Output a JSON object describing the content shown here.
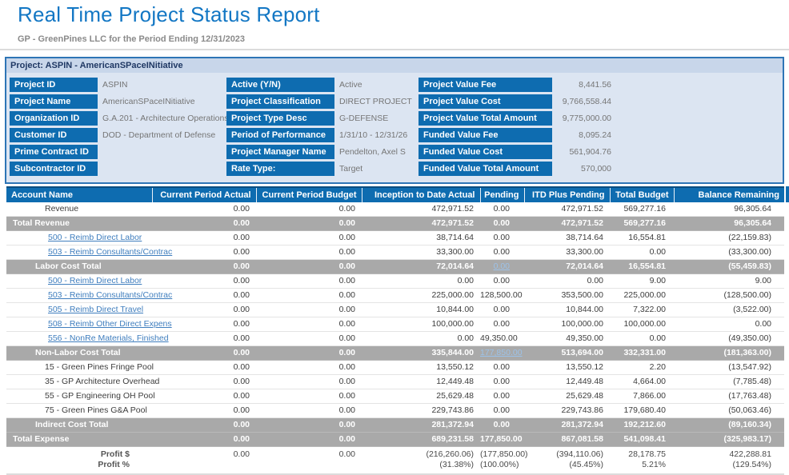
{
  "title": "Real Time Project Status Report",
  "subtitle": "GP - GreenPines LLC for the Period Ending 12/31/2023",
  "project_banner": "Project: ASPIN - AmericanSPaceINitiative",
  "info_panel": {
    "col1": [
      {
        "label": "Project ID",
        "value": "ASPIN"
      },
      {
        "label": "Project Name",
        "value": "AmericanSPaceINitiative"
      },
      {
        "label": "Organization ID",
        "value": "G.A.201 - Architecture Operations"
      },
      {
        "label": "Customer ID",
        "value": "DOD - Department of Defense"
      },
      {
        "label": "Prime Contract ID",
        "value": ""
      },
      {
        "label": "Subcontractor ID",
        "value": ""
      }
    ],
    "col2": [
      {
        "label": "Active (Y/N)",
        "value": "Active"
      },
      {
        "label": "Project Classification",
        "value": "DIRECT PROJECT"
      },
      {
        "label": "Project Type Desc",
        "value": "G-DEFENSE"
      },
      {
        "label": "Period of Performance",
        "value": "1/31/10 - 12/31/26"
      },
      {
        "label": "Project Manager Name",
        "value": "Pendelton, Axel S"
      },
      {
        "label": "Rate Type:",
        "value": "Target"
      }
    ],
    "col3": [
      {
        "label": "Project Value Fee",
        "value": "8,441.56"
      },
      {
        "label": "Project Value Cost",
        "value": "9,766,558.44"
      },
      {
        "label": "Project Value Total Amount",
        "value": "9,775,000.00"
      },
      {
        "label": "Funded Value Fee",
        "value": "8,095.24"
      },
      {
        "label": "Funded Value Cost",
        "value": "561,904.76"
      },
      {
        "label": "Funded Value Total Amount",
        "value": "570,000"
      }
    ]
  },
  "table": {
    "columns": [
      "Account Name",
      "Current Period Actual",
      "Current Period Budget",
      "Inception to Date Actual",
      "Pending",
      "ITD Plus Pending",
      "Total Budget",
      "Balance Remaining"
    ],
    "rows": [
      {
        "label": "Revenue",
        "type": "plain",
        "indent": 2,
        "values": [
          "0.00",
          "0.00",
          "472,971.52",
          "0.00",
          "472,971.52",
          "569,277.16",
          "96,305.64"
        ]
      },
      {
        "label": "Total Revenue",
        "type": "grand",
        "indent": 0,
        "values": [
          "0.00",
          "0.00",
          "472,971.52",
          "0.00",
          "472,971.52",
          "569,277.16",
          "96,305.64"
        ]
      },
      {
        "label": "500 - Reimb Direct Labor",
        "type": "link",
        "indent": 3,
        "values": [
          "0.00",
          "0.00",
          "38,714.64",
          "0.00",
          "38,714.64",
          "16,554.81",
          "(22,159.83)"
        ]
      },
      {
        "label": "503 - Reimb Consultants/Contrac",
        "type": "link",
        "indent": 3,
        "values": [
          "0.00",
          "0.00",
          "33,300.00",
          "0.00",
          "33,300.00",
          "0.00",
          "(33,300.00)"
        ]
      },
      {
        "label": "Labor Cost Total",
        "type": "total",
        "indent": 1,
        "pending_link": true,
        "values": [
          "0.00",
          "0.00",
          "72,014.64",
          "0.00",
          "72,014.64",
          "16,554.81",
          "(55,459.83)"
        ]
      },
      {
        "label": "500 - Reimb Direct Labor",
        "type": "link",
        "indent": 3,
        "values": [
          "0.00",
          "0.00",
          "0.00",
          "0.00",
          "0.00",
          "9.00",
          "9.00"
        ]
      },
      {
        "label": "503 - Reimb Consultants/Contrac",
        "type": "link",
        "indent": 3,
        "values": [
          "0.00",
          "0.00",
          "225,000.00",
          "128,500.00",
          "353,500.00",
          "225,000.00",
          "(128,500.00)"
        ]
      },
      {
        "label": "505 - Reimb Direct Travel",
        "type": "link",
        "indent": 3,
        "values": [
          "0.00",
          "0.00",
          "10,844.00",
          "0.00",
          "10,844.00",
          "7,322.00",
          "(3,522.00)"
        ]
      },
      {
        "label": "508 - Reimb Other Direct Expens",
        "type": "link",
        "indent": 3,
        "values": [
          "0.00",
          "0.00",
          "100,000.00",
          "0.00",
          "100,000.00",
          "100,000.00",
          "0.00"
        ]
      },
      {
        "label": "556 - NonRe Materials, Finished",
        "type": "link",
        "indent": 3,
        "values": [
          "0.00",
          "0.00",
          "0.00",
          "49,350.00",
          "49,350.00",
          "0.00",
          "(49,350.00)"
        ]
      },
      {
        "label": "Non-Labor Cost Total",
        "type": "total",
        "indent": 1,
        "pending_link": true,
        "values": [
          "0.00",
          "0.00",
          "335,844.00",
          "177,850.00",
          "513,694.00",
          "332,331.00",
          "(181,363.00)"
        ]
      },
      {
        "label": "15 - Green Pines Fringe Pool",
        "type": "plain",
        "indent": 2,
        "values": [
          "0.00",
          "0.00",
          "13,550.12",
          "0.00",
          "13,550.12",
          "2.20",
          "(13,547.92)"
        ]
      },
      {
        "label": "35 - GP Architecture Overhead",
        "type": "plain",
        "indent": 2,
        "values": [
          "0.00",
          "0.00",
          "12,449.48",
          "0.00",
          "12,449.48",
          "4,664.00",
          "(7,785.48)"
        ]
      },
      {
        "label": "55 - GP Engineering OH Pool",
        "type": "plain",
        "indent": 2,
        "values": [
          "0.00",
          "0.00",
          "25,629.48",
          "0.00",
          "25,629.48",
          "7,866.00",
          "(17,763.48)"
        ]
      },
      {
        "label": "75 - Green Pines G&A Pool",
        "type": "plain",
        "indent": 2,
        "values": [
          "0.00",
          "0.00",
          "229,743.86",
          "0.00",
          "229,743.86",
          "179,680.40",
          "(50,063.46)"
        ]
      },
      {
        "label": "Indirect Cost Total",
        "type": "total",
        "indent": 1,
        "values": [
          "0.00",
          "0.00",
          "281,372.94",
          "0.00",
          "281,372.94",
          "192,212.60",
          "(89,160.34)"
        ]
      },
      {
        "label": "Total Expense",
        "type": "grand",
        "indent": 0,
        "values": [
          "0.00",
          "0.00",
          "689,231.58",
          "177,850.00",
          "867,081.58",
          "541,098.41",
          "(325,983.17)"
        ]
      }
    ],
    "profit": {
      "labels": [
        "Profit $",
        "Profit %"
      ],
      "dollar": [
        "0.00",
        "0.00",
        "(216,260.06)",
        "(177,850.00)",
        "(394,110.06)",
        "28,178.75",
        "422,288.81"
      ],
      "percent": [
        "",
        "",
        "(31.38%)",
        "(100.00%)",
        "(45.45%)",
        "5.21%",
        "(129.54%)"
      ]
    }
  },
  "colors": {
    "title_blue": "#1377C4",
    "header_blue": "#0E6CB0",
    "panel_border_blue": "#2E75B6",
    "panel_background": "#DCE5F2",
    "banner_background": "#C8D6EA",
    "total_row_gray": "#A9A9A9",
    "account_link_blue": "#3F7EBE",
    "pending_link_blue": "#9CC2E8",
    "subtitle_gray": "#8A8A8A"
  }
}
